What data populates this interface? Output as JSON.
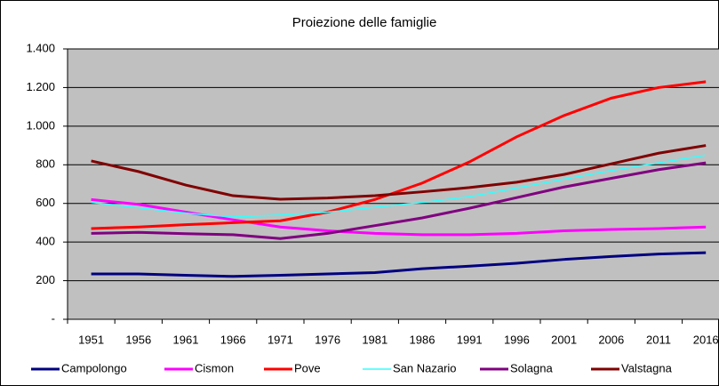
{
  "chart_data": {
    "type": "line",
    "title": "Proiezione delle famiglie",
    "categories": [
      "1951",
      "1956",
      "1961",
      "1966",
      "1971",
      "1976",
      "1981",
      "1986",
      "1991",
      "1996",
      "2001",
      "2006",
      "2011",
      "2016"
    ],
    "series": [
      {
        "name": "Campolongo",
        "color": "#000080",
        "values": [
          235,
          235,
          228,
          222,
          228,
          235,
          242,
          262,
          275,
          290,
          310,
          325,
          338,
          345
        ]
      },
      {
        "name": "Cismon",
        "color": "#ff00ff",
        "values": [
          620,
          595,
          555,
          515,
          478,
          458,
          445,
          438,
          438,
          445,
          458,
          465,
          470,
          478
        ]
      },
      {
        "name": "Pove",
        "color": "#ff0000",
        "values": [
          470,
          478,
          490,
          500,
          510,
          555,
          620,
          705,
          815,
          945,
          1055,
          1145,
          1200,
          1230
        ]
      },
      {
        "name": "San Nazario",
        "color": "#33ffff",
        "values": [
          605,
          578,
          550,
          530,
          540,
          555,
          580,
          605,
          635,
          680,
          725,
          770,
          810,
          850
        ]
      },
      {
        "name": "Solagna",
        "color": "#800080",
        "values": [
          445,
          450,
          443,
          438,
          418,
          445,
          485,
          525,
          575,
          630,
          685,
          730,
          775,
          810
        ]
      },
      {
        "name": "Valstagna",
        "color": "#800000",
        "values": [
          820,
          765,
          695,
          640,
          622,
          628,
          640,
          660,
          682,
          710,
          750,
          805,
          860,
          900
        ]
      }
    ],
    "ylim": [
      0,
      1400
    ],
    "yticks": [
      {
        "value": 0,
        "label": "-"
      },
      200,
      400,
      600,
      800,
      {
        "value": 1000,
        "label": "1.000"
      },
      {
        "value": 1200,
        "label": "1.200"
      },
      {
        "value": 1400,
        "label": "1.400"
      }
    ],
    "grid": true,
    "legend": "bottom"
  }
}
